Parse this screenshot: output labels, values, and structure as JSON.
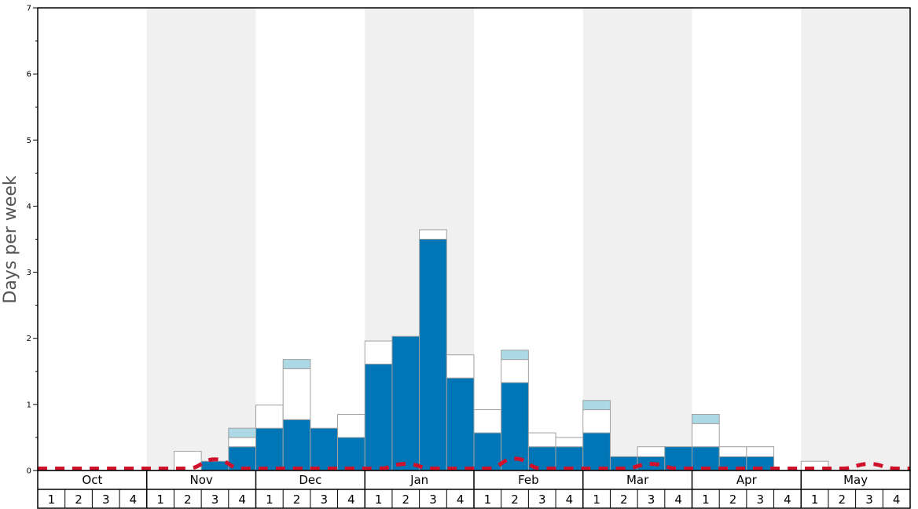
{
  "chart_data": {
    "type": "bar",
    "stacked": true,
    "ylabel": "Days per week",
    "ylim": [
      0,
      7
    ],
    "yticks": [
      "0",
      "1",
      "2",
      "3",
      "4",
      "5",
      "6",
      "7"
    ],
    "months": [
      "Oct",
      "Nov",
      "Dec",
      "Jan",
      "Feb",
      "Mar",
      "Apr",
      "May"
    ],
    "weeks": [
      "1",
      "2",
      "3",
      "4"
    ],
    "shaded_months": [
      "Nov",
      "Jan",
      "Mar",
      "May"
    ],
    "colors": {
      "bottom": "#0076b6",
      "middle": "#ffffff",
      "top": "#add8e6",
      "baseline": "#d0112b",
      "shade": "#f0f0f0"
    },
    "series": [
      {
        "values": [
          0,
          0,
          0,
          0,
          0,
          0,
          0.14,
          0.36,
          0.64,
          0.77,
          0.64,
          0.5,
          1.61,
          2.03,
          3.5,
          1.4,
          0.57,
          1.33,
          0.36,
          0.36,
          0.57,
          0.21,
          0.21,
          0.36,
          0.36,
          0.21,
          0.21,
          0,
          0,
          0,
          0,
          0
        ]
      },
      {
        "values": [
          0,
          0,
          0,
          0,
          0,
          0.29,
          0,
          0.14,
          0.35,
          0.77,
          0,
          0.35,
          0.35,
          0,
          0.14,
          0.35,
          0.35,
          0.35,
          0.21,
          0.14,
          0.35,
          0,
          0.15,
          0,
          0.35,
          0.15,
          0.15,
          0,
          0.14,
          0,
          0,
          0
        ]
      },
      {
        "values": [
          0,
          0,
          0,
          0,
          0,
          0,
          0,
          0.14,
          0,
          0.14,
          0,
          0,
          0,
          0,
          0,
          0,
          0,
          0.14,
          0,
          0,
          0.14,
          0,
          0,
          0,
          0.14,
          0,
          0,
          0,
          0,
          0,
          0,
          0
        ]
      }
    ],
    "baseline": [
      0.03,
      0.03,
      0.03,
      0.03,
      0.03,
      0.03,
      0.17,
      0.03,
      0.03,
      0.03,
      0.03,
      0.03,
      0.03,
      0.1,
      0.03,
      0.03,
      0.03,
      0.18,
      0.03,
      0.03,
      0.03,
      0.03,
      0.1,
      0.03,
      0.03,
      0.03,
      0.03,
      0.03,
      0.03,
      0.03,
      0.1,
      0.03
    ]
  }
}
